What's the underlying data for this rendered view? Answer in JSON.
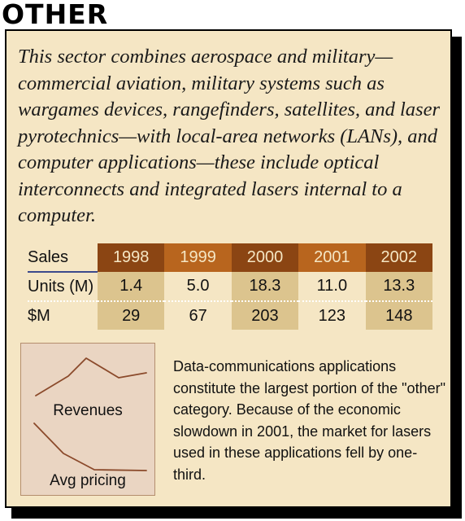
{
  "section_title": "OTHER",
  "intro_text": "This sector combines aerospace and military—commercial aviation, military systems such as wargames devices, rangefinders, satellites, and laser pyrotechnics—with local-area networks (LANs), and computer applications—these include optical interconnects and integrated lasers internal to a computer.",
  "sales_table": {
    "header_label": "Sales",
    "years": [
      "1998",
      "1999",
      "2000",
      "2001",
      "2002"
    ],
    "rows": [
      {
        "label": "Units (M)",
        "values": [
          "1.4",
          "5.0",
          "18.3",
          "11.0",
          "13.3"
        ]
      },
      {
        "label": "$M",
        "values": [
          "29",
          "67",
          "203",
          "123",
          "148"
        ]
      }
    ]
  },
  "mini_chart": {
    "revenues_label": "Revenues",
    "pricing_label": "Avg pricing",
    "line_color": "#8b4a2b"
  },
  "side_text": "Data-communications applications constitute the largest portion of the \"other\" category. Because of the economic slowdown in 2001, the market for lasers used in these applications fell by one-third.",
  "colors": {
    "panel_background": "#f5e6c4",
    "header_dark": "#8b4513",
    "header_light": "#b8651e",
    "cell_shade": "#dcc48e",
    "chart_background": "#ead5c2"
  }
}
